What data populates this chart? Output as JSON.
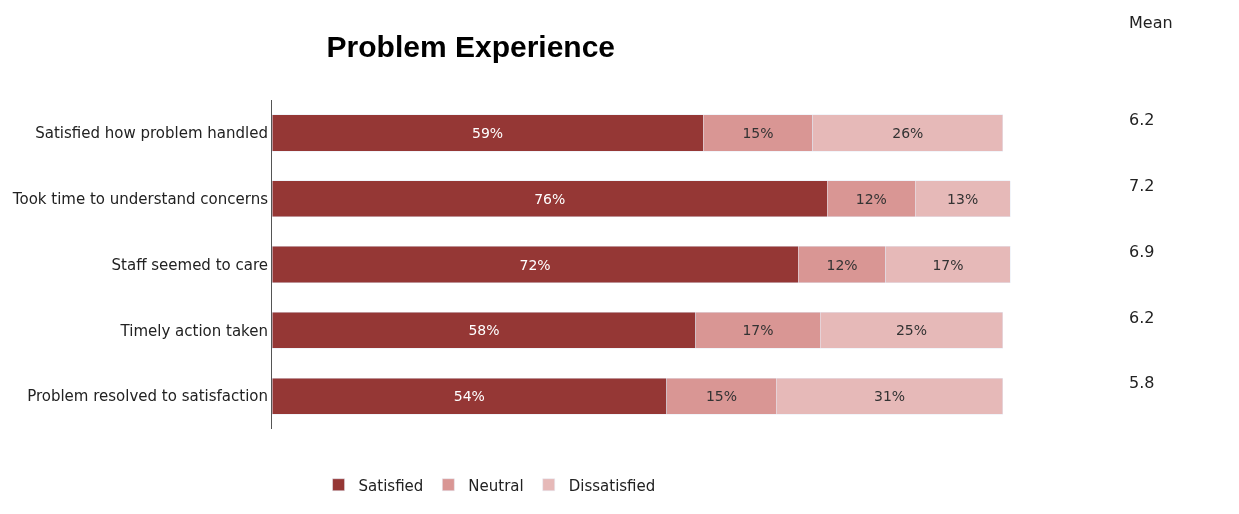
{
  "chart_data": {
    "type": "bar",
    "orientation": "horizontal",
    "stacked": true,
    "title": "Problem Experience",
    "categories": [
      "Satisfied how problem handled",
      "Took time to understand concerns",
      "Staff seemed to care",
      "Timely action taken",
      "Problem resolved to satisfaction"
    ],
    "series": [
      {
        "name": "Satisfied",
        "color": "#953735",
        "values": [
          59,
          76,
          72,
          58,
          54
        ],
        "value_labels": [
          "59%",
          "76%",
          "72%",
          "58%",
          "54%"
        ]
      },
      {
        "name": "Neutral",
        "color": "#d99694",
        "values": [
          15,
          12,
          12,
          17,
          15
        ],
        "value_labels": [
          "15%",
          "12%",
          "12%",
          "17%",
          "15%"
        ]
      },
      {
        "name": "Dissatisfied",
        "color": "#e6b9b8",
        "values": [
          26,
          13,
          17,
          25,
          31
        ],
        "value_labels": [
          "26%",
          "13%",
          "17%",
          "25%",
          "31%"
        ]
      }
    ],
    "annotations": [
      "Mean",
      "6.2",
      "7.2",
      "6.9",
      "6.2",
      "5.8"
    ],
    "legend": "bottom",
    "grid": false
  }
}
